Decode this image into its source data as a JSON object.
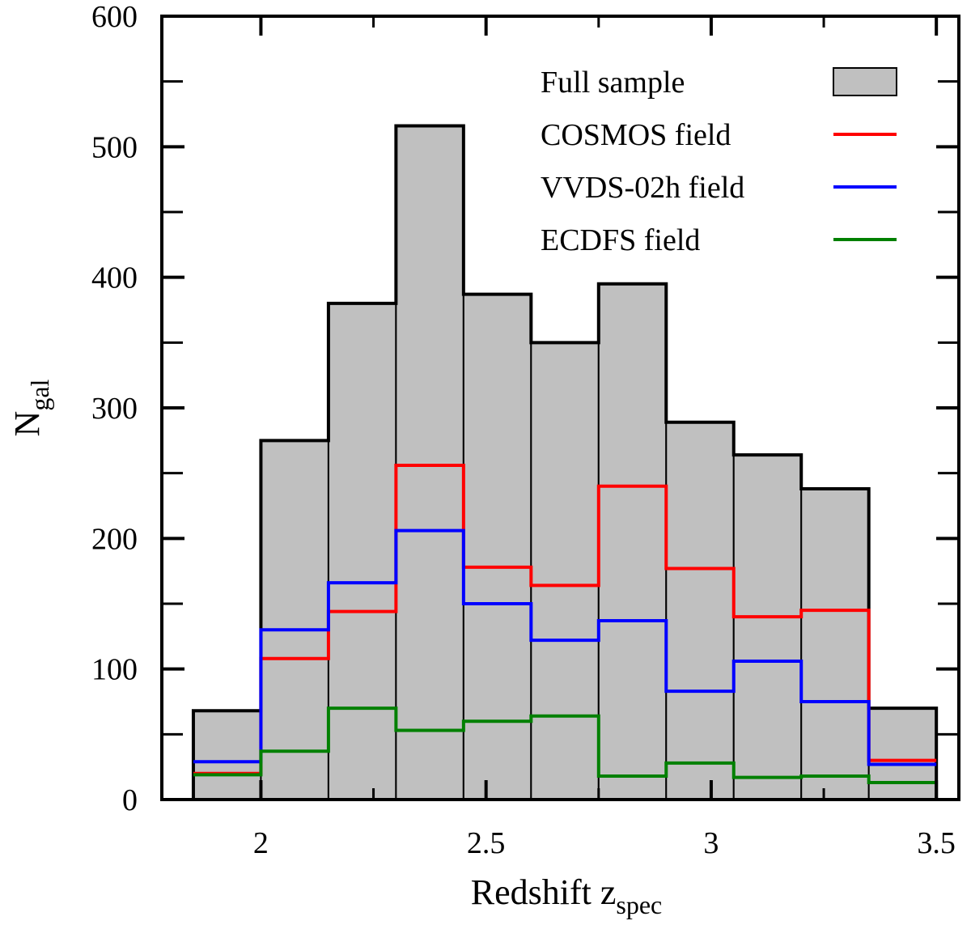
{
  "chart_data": {
    "type": "bar",
    "title": "",
    "xlabel": "Redshift z",
    "xlabel_sub": "spec",
    "ylabel": "N",
    "ylabel_sub": "gal",
    "xlim": [
      1.78,
      3.55
    ],
    "ylim": [
      0,
      600
    ],
    "x_ticks": [
      2,
      2.5,
      3,
      3.5
    ],
    "x_tick_labels": [
      "2",
      "2.5",
      "3",
      "3.5"
    ],
    "y_ticks": [
      0,
      100,
      200,
      300,
      400,
      500,
      600
    ],
    "y_tick_labels": [
      "0",
      "100",
      "200",
      "300",
      "400",
      "500",
      "600"
    ],
    "bin_edges": [
      1.85,
      2.0,
      2.15,
      2.3,
      2.45,
      2.6,
      2.75,
      2.9,
      3.05,
      3.2,
      3.35,
      3.5
    ],
    "legend_position": "top-right",
    "series": [
      {
        "name": "Full sample",
        "kind": "filled",
        "color": "#c0c0c0",
        "edge": "#000000",
        "values": [
          68,
          275,
          380,
          516,
          387,
          350,
          395,
          289,
          264,
          238,
          70
        ]
      },
      {
        "name": "COSMOS field",
        "kind": "step",
        "color": "#ff0000",
        "values": [
          20,
          108,
          144,
          256,
          178,
          164,
          240,
          177,
          140,
          145,
          30
        ]
      },
      {
        "name": "VVDS-02h field",
        "kind": "step",
        "color": "#0000ff",
        "values": [
          29,
          130,
          166,
          206,
          150,
          122,
          137,
          83,
          106,
          75,
          27
        ]
      },
      {
        "name": "ECDFS field",
        "kind": "step",
        "color": "#008000",
        "values": [
          19,
          37,
          70,
          53,
          60,
          64,
          18,
          28,
          17,
          18,
          13
        ]
      }
    ]
  }
}
